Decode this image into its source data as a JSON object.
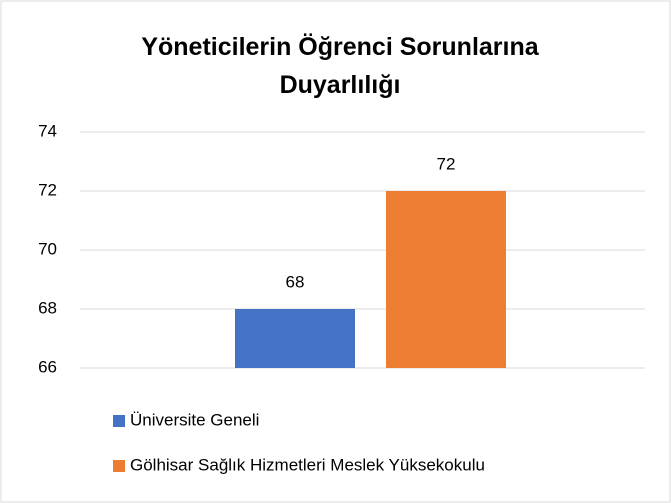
{
  "chart_data": {
    "type": "bar",
    "title": "Yöneticilerin Öğrenci Sorunlarına Duyarlılığı",
    "categories": [
      null
    ],
    "series": [
      {
        "name": "Üniversite Geneli",
        "color": "#4472c4",
        "values": [
          68
        ]
      },
      {
        "name": "Gölhisar Sağlık Hizmetleri Meslek Yüksekokulu",
        "color": "#ed7d31",
        "values": [
          72
        ]
      }
    ],
    "ylim": [
      66,
      74
    ],
    "yticks": [
      66,
      68,
      70,
      72,
      74
    ],
    "grid": true,
    "legend": "bottom"
  }
}
